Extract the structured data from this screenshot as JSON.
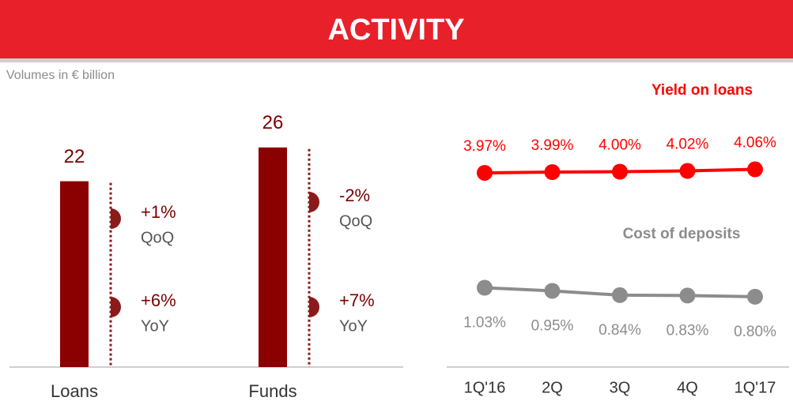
{
  "header": {
    "title": "ACTIVITY",
    "subtitle": "Volumes in € billion"
  },
  "chart_data": [
    {
      "type": "bar",
      "categories": [
        "Loans",
        "Funds"
      ],
      "values": [
        22,
        26
      ],
      "color": "#8b0000",
      "ylim": [
        0,
        30
      ],
      "annotations": [
        [
          {
            "text": "+1%",
            "period": "QoQ"
          },
          {
            "text": "+6%",
            "period": "YoY"
          }
        ],
        [
          {
            "text": "-2%",
            "period": "QoQ"
          },
          {
            "text": "+7%",
            "period": "YoY"
          }
        ]
      ]
    },
    {
      "type": "line",
      "categories": [
        "1Q'16",
        "2Q",
        "3Q",
        "4Q",
        "1Q'17"
      ],
      "ylim": [
        -1,
        5
      ],
      "series": [
        {
          "name": "Yield on loans",
          "color": "#ff0000",
          "values": [
            3.97,
            3.99,
            4.0,
            4.02,
            4.06
          ],
          "value_labels": [
            "3.97%",
            "3.99%",
            "4.00%",
            "4.02%",
            "4.06%"
          ]
        },
        {
          "name": "Cost of deposits",
          "color": "#8c8c8c",
          "values": [
            1.03,
            0.95,
            0.84,
            0.83,
            0.8
          ],
          "value_labels": [
            "1.03%",
            "0.95%",
            "0.84%",
            "0.83%",
            "0.80%"
          ]
        }
      ]
    }
  ]
}
